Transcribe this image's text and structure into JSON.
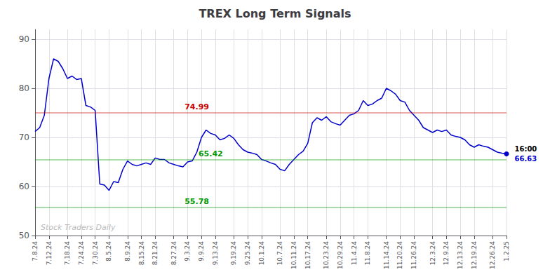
{
  "chart_data": {
    "type": "line",
    "title": "TREX Long Term Signals",
    "categories": [
      "7.8.24",
      null,
      null,
      "7.12.24",
      null,
      null,
      null,
      "7.18.24",
      null,
      null,
      "7.24.24",
      null,
      null,
      "7.30.24",
      null,
      null,
      "8.5.24",
      null,
      null,
      null,
      "8.9.24",
      null,
      null,
      "8.15.24",
      null,
      null,
      "8.21.24",
      null,
      null,
      null,
      "8.27.24",
      null,
      null,
      "9.3.24",
      null,
      null,
      "9.9.24",
      null,
      null,
      "9.13.24",
      null,
      null,
      null,
      "9.19.24",
      null,
      null,
      "9.25.24",
      null,
      null,
      "10.1.24",
      null,
      null,
      null,
      "10.7.24",
      null,
      null,
      "10.11.24",
      null,
      null,
      "10.17.24",
      null,
      null,
      null,
      "10.23.24",
      null,
      null,
      "10.29.24",
      null,
      null,
      "11.4.24",
      null,
      null,
      "11.8.24",
      null,
      null,
      null,
      "11.14.24",
      null,
      null,
      "11.20.24",
      null,
      null,
      "11.26.24",
      null,
      null,
      null,
      "12.3.24",
      null,
      null,
      "12.9.24",
      null,
      null,
      "12.13.24",
      null,
      null,
      "12.19.24",
      null,
      null,
      null,
      "12.26.24",
      null,
      null,
      "1.2.25"
    ],
    "values": [
      71.2,
      72.0,
      74.5,
      82.0,
      86.0,
      85.5,
      84.0,
      82.0,
      82.5,
      81.8,
      82.0,
      76.5,
      76.2,
      75.5,
      60.5,
      60.3,
      59.2,
      61.0,
      60.8,
      63.5,
      65.2,
      64.5,
      64.2,
      64.5,
      64.8,
      64.5,
      65.8,
      65.5,
      65.5,
      64.8,
      64.5,
      64.2,
      64.0,
      65.0,
      65.2,
      67.0,
      70.0,
      71.5,
      70.8,
      70.5,
      69.5,
      69.8,
      70.5,
      69.8,
      68.5,
      67.5,
      67.0,
      66.8,
      66.5,
      65.5,
      65.2,
      64.8,
      64.5,
      63.5,
      63.2,
      64.5,
      65.5,
      66.5,
      67.2,
      68.8,
      73.0,
      74.0,
      73.5,
      74.2,
      73.2,
      72.8,
      72.5,
      73.5,
      74.5,
      74.8,
      75.5,
      77.5,
      76.5,
      76.8,
      77.5,
      78.0,
      80.0,
      79.5,
      78.8,
      77.5,
      77.2,
      75.5,
      74.5,
      73.5,
      72.0,
      71.5,
      71.0,
      71.5,
      71.2,
      71.5,
      70.5,
      70.2,
      70.0,
      69.5,
      68.5,
      68.0,
      68.5,
      68.2,
      68.0,
      67.5,
      67.0,
      66.8,
      66.63
    ],
    "color": "#0000cc",
    "ylim": [
      50,
      92
    ],
    "yticks": [
      50,
      60,
      70,
      80,
      90
    ],
    "grid": true,
    "hlines": [
      {
        "y": 74.99,
        "label": "74.99",
        "color": "#cc0000"
      },
      {
        "y": 65.42,
        "label": "65.42",
        "color": "#009900"
      },
      {
        "y": 55.78,
        "label": "55.78",
        "color": "#009900"
      }
    ],
    "last_point_labels": [
      "16:00",
      "66.63"
    ],
    "annotations": [
      "Stock Traders Daily"
    ]
  }
}
